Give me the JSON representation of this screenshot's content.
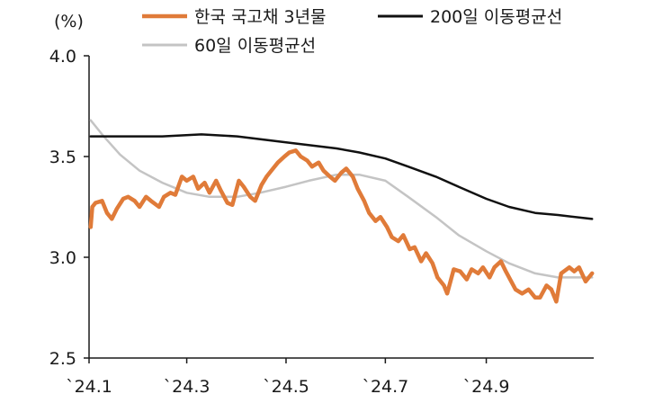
{
  "chart_data": {
    "type": "line",
    "ylabel": "(%)",
    "ylim": [
      2.5,
      4.0
    ],
    "yticks": [
      "4.0",
      "3.5",
      "3.0",
      "2.5"
    ],
    "xticks": [
      "`24.1",
      "`24.3",
      "`24.5",
      "`24.7",
      "`24.9"
    ],
    "grid": false,
    "legend_position": "top",
    "series": [
      {
        "name": "한국 국고채 3년물",
        "color": "#E07B39",
        "values": [
          [
            "2024-01-02",
            3.15
          ],
          [
            "2024-01-03",
            3.25
          ],
          [
            "2024-01-05",
            3.27
          ],
          [
            "2024-01-09",
            3.28
          ],
          [
            "2024-01-12",
            3.22
          ],
          [
            "2024-01-15",
            3.19
          ],
          [
            "2024-01-18",
            3.24
          ],
          [
            "2024-01-22",
            3.29
          ],
          [
            "2024-01-25",
            3.3
          ],
          [
            "2024-01-29",
            3.28
          ],
          [
            "2024-02-01",
            3.25
          ],
          [
            "2024-02-05",
            3.3
          ],
          [
            "2024-02-08",
            3.28
          ],
          [
            "2024-02-13",
            3.25
          ],
          [
            "2024-02-16",
            3.3
          ],
          [
            "2024-02-20",
            3.32
          ],
          [
            "2024-02-23",
            3.31
          ],
          [
            "2024-02-27",
            3.4
          ],
          [
            "2024-03-01",
            3.38
          ],
          [
            "2024-03-05",
            3.4
          ],
          [
            "2024-03-08",
            3.34
          ],
          [
            "2024-03-12",
            3.37
          ],
          [
            "2024-03-15",
            3.32
          ],
          [
            "2024-03-19",
            3.38
          ],
          [
            "2024-03-22",
            3.33
          ],
          [
            "2024-03-26",
            3.27
          ],
          [
            "2024-03-29",
            3.26
          ],
          [
            "2024-04-02",
            3.38
          ],
          [
            "2024-04-05",
            3.35
          ],
          [
            "2024-04-09",
            3.3
          ],
          [
            "2024-04-12",
            3.28
          ],
          [
            "2024-04-16",
            3.36
          ],
          [
            "2024-04-19",
            3.4
          ],
          [
            "2024-04-23",
            3.44
          ],
          [
            "2024-04-26",
            3.47
          ],
          [
            "2024-04-30",
            3.5
          ],
          [
            "2024-05-03",
            3.52
          ],
          [
            "2024-05-07",
            3.53
          ],
          [
            "2024-05-10",
            3.5
          ],
          [
            "2024-05-14",
            3.48
          ],
          [
            "2024-05-17",
            3.45
          ],
          [
            "2024-05-21",
            3.47
          ],
          [
            "2024-05-24",
            3.43
          ],
          [
            "2024-05-28",
            3.4
          ],
          [
            "2024-05-31",
            3.38
          ],
          [
            "2024-06-04",
            3.42
          ],
          [
            "2024-06-07",
            3.44
          ],
          [
            "2024-06-11",
            3.4
          ],
          [
            "2024-06-14",
            3.34
          ],
          [
            "2024-06-18",
            3.28
          ],
          [
            "2024-06-21",
            3.22
          ],
          [
            "2024-06-25",
            3.18
          ],
          [
            "2024-06-28",
            3.2
          ],
          [
            "2024-07-02",
            3.15
          ],
          [
            "2024-07-05",
            3.1
          ],
          [
            "2024-07-09",
            3.08
          ],
          [
            "2024-07-12",
            3.11
          ],
          [
            "2024-07-16",
            3.04
          ],
          [
            "2024-07-19",
            3.05
          ],
          [
            "2024-07-23",
            2.98
          ],
          [
            "2024-07-26",
            3.02
          ],
          [
            "2024-07-30",
            2.97
          ],
          [
            "2024-08-02",
            2.9
          ],
          [
            "2024-08-06",
            2.86
          ],
          [
            "2024-08-08",
            2.82
          ],
          [
            "2024-08-12",
            2.94
          ],
          [
            "2024-08-16",
            2.93
          ],
          [
            "2024-08-20",
            2.89
          ],
          [
            "2024-08-23",
            2.94
          ],
          [
            "2024-08-27",
            2.92
          ],
          [
            "2024-08-30",
            2.95
          ],
          [
            "2024-09-03",
            2.9
          ],
          [
            "2024-09-06",
            2.95
          ],
          [
            "2024-09-10",
            2.98
          ],
          [
            "2024-09-13",
            2.93
          ],
          [
            "2024-09-19",
            2.84
          ],
          [
            "2024-09-23",
            2.82
          ],
          [
            "2024-09-27",
            2.84
          ],
          [
            "2024-10-01",
            2.8
          ],
          [
            "2024-10-04",
            2.8
          ],
          [
            "2024-10-08",
            2.86
          ],
          [
            "2024-10-11",
            2.84
          ],
          [
            "2024-10-14",
            2.78
          ],
          [
            "2024-10-17",
            2.92
          ],
          [
            "2024-10-22",
            2.95
          ],
          [
            "2024-10-25",
            2.93
          ],
          [
            "2024-10-28",
            2.95
          ],
          [
            "2024-11-01",
            2.88
          ],
          [
            "2024-11-05",
            2.92
          ]
        ]
      },
      {
        "name": "200일 이동평균선",
        "color": "#111111",
        "values": [
          [
            "2024-01-02",
            3.6
          ],
          [
            "2024-02-15",
            3.6
          ],
          [
            "2024-03-10",
            3.61
          ],
          [
            "2024-04-01",
            3.6
          ],
          [
            "2024-05-01",
            3.57
          ],
          [
            "2024-06-01",
            3.54
          ],
          [
            "2024-06-15",
            3.52
          ],
          [
            "2024-07-01",
            3.49
          ],
          [
            "2024-07-15",
            3.45
          ],
          [
            "2024-08-01",
            3.4
          ],
          [
            "2024-08-15",
            3.35
          ],
          [
            "2024-09-01",
            3.29
          ],
          [
            "2024-09-15",
            3.25
          ],
          [
            "2024-10-01",
            3.22
          ],
          [
            "2024-10-15",
            3.21
          ],
          [
            "2024-11-05",
            3.19
          ]
        ]
      },
      {
        "name": "60일 이동평균선",
        "color": "#C4C4C4",
        "values": [
          [
            "2024-01-02",
            3.68
          ],
          [
            "2024-01-10",
            3.6
          ],
          [
            "2024-01-20",
            3.51
          ],
          [
            "2024-02-01",
            3.43
          ],
          [
            "2024-02-15",
            3.37
          ],
          [
            "2024-03-01",
            3.32
          ],
          [
            "2024-03-15",
            3.3
          ],
          [
            "2024-04-01",
            3.3
          ],
          [
            "2024-04-15",
            3.32
          ],
          [
            "2024-05-01",
            3.35
          ],
          [
            "2024-05-15",
            3.38
          ],
          [
            "2024-06-01",
            3.41
          ],
          [
            "2024-06-15",
            3.41
          ],
          [
            "2024-07-01",
            3.38
          ],
          [
            "2024-07-15",
            3.3
          ],
          [
            "2024-08-01",
            3.2
          ],
          [
            "2024-08-15",
            3.11
          ],
          [
            "2024-09-01",
            3.03
          ],
          [
            "2024-09-15",
            2.97
          ],
          [
            "2024-10-01",
            2.92
          ],
          [
            "2024-10-15",
            2.9
          ],
          [
            "2024-11-05",
            2.9
          ]
        ]
      }
    ],
    "xtick_dates": [
      "2024-01-01",
      "2024-03-01",
      "2024-05-01",
      "2024-07-01",
      "2024-09-01"
    ],
    "xlim": [
      "2024-01-01",
      "2024-11-06"
    ]
  }
}
